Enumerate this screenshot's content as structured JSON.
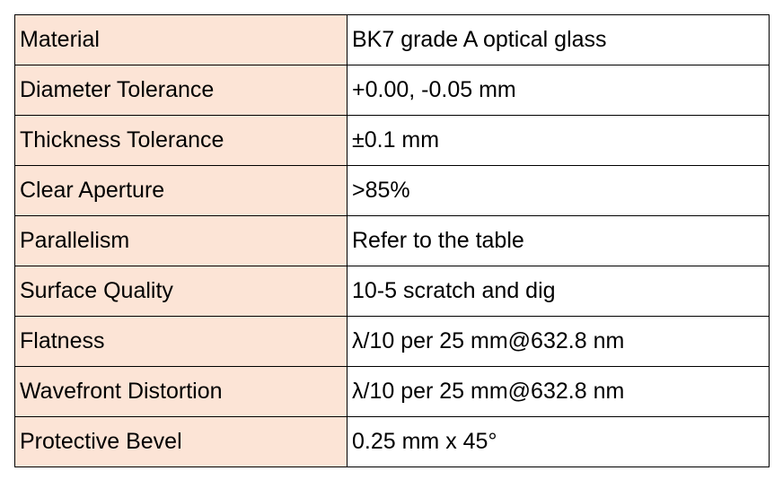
{
  "table": {
    "rows": [
      [
        "Material",
        "BK7 grade A optical glass"
      ],
      [
        "Diameter Tolerance",
        "+0.00, -0.05 mm"
      ],
      [
        "Thickness Tolerance",
        "±0.1 mm"
      ],
      [
        "Clear Aperture",
        ">85%"
      ],
      [
        "Parallelism",
        "Refer to the table"
      ],
      [
        "Surface Quality",
        "10-5 scratch and dig"
      ],
      [
        "Flatness",
        "λ/10 per 25 mm@632.8 nm"
      ],
      [
        "Wavefront Distortion",
        "λ/10 per 25 mm@632.8 nm"
      ],
      [
        "Protective Bevel",
        "0.25 mm x 45°"
      ]
    ]
  }
}
